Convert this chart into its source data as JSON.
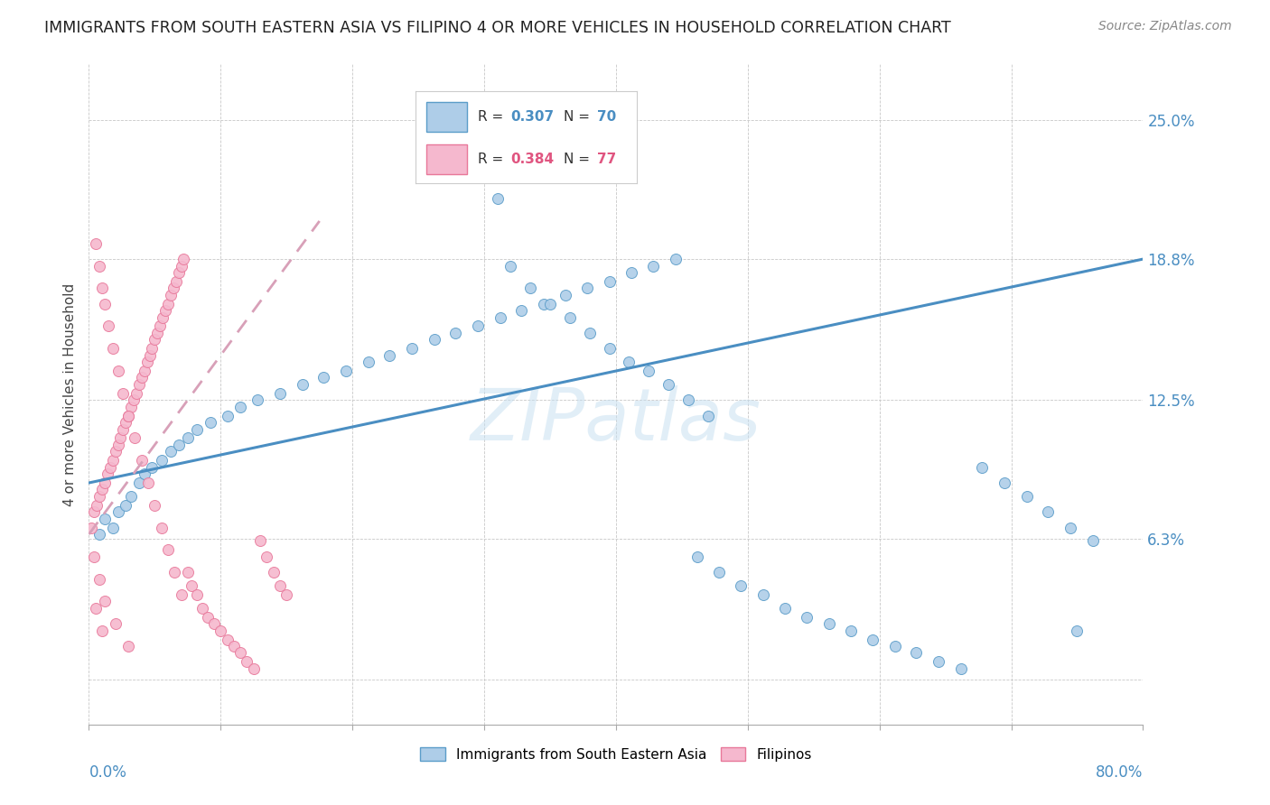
{
  "title": "IMMIGRANTS FROM SOUTH EASTERN ASIA VS FILIPINO 4 OR MORE VEHICLES IN HOUSEHOLD CORRELATION CHART",
  "source": "Source: ZipAtlas.com",
  "ylabel": "4 or more Vehicles in Household",
  "xlim": [
    0.0,
    0.8
  ],
  "ylim": [
    -0.02,
    0.275
  ],
  "ytick_vals": [
    0.0,
    0.063,
    0.125,
    0.188,
    0.25
  ],
  "ytick_labels": [
    "",
    "6.3%",
    "12.5%",
    "18.8%",
    "25.0%"
  ],
  "color_blue_fill": "#aecde8",
  "color_blue_edge": "#5b9dc9",
  "color_blue_line": "#4a8ec2",
  "color_pink_fill": "#f5b8ce",
  "color_pink_edge": "#e8789a",
  "color_pink_line": "#e8789a",
  "watermark": "ZIPatlas",
  "blue_x": [
    0.008,
    0.012,
    0.018,
    0.022,
    0.028,
    0.032,
    0.038,
    0.042,
    0.048,
    0.055,
    0.062,
    0.068,
    0.075,
    0.082,
    0.092,
    0.105,
    0.115,
    0.128,
    0.145,
    0.162,
    0.178,
    0.195,
    0.212,
    0.228,
    0.245,
    0.262,
    0.278,
    0.295,
    0.312,
    0.328,
    0.345,
    0.362,
    0.378,
    0.395,
    0.412,
    0.428,
    0.445,
    0.462,
    0.478,
    0.495,
    0.512,
    0.528,
    0.545,
    0.562,
    0.578,
    0.595,
    0.612,
    0.628,
    0.645,
    0.662,
    0.678,
    0.695,
    0.712,
    0.728,
    0.745,
    0.762,
    0.305,
    0.31,
    0.32,
    0.335,
    0.35,
    0.365,
    0.38,
    0.395,
    0.41,
    0.425,
    0.44,
    0.455,
    0.47,
    0.75
  ],
  "blue_y": [
    0.065,
    0.072,
    0.068,
    0.075,
    0.078,
    0.082,
    0.088,
    0.092,
    0.095,
    0.098,
    0.102,
    0.105,
    0.108,
    0.112,
    0.115,
    0.118,
    0.122,
    0.125,
    0.128,
    0.132,
    0.135,
    0.138,
    0.142,
    0.145,
    0.148,
    0.152,
    0.155,
    0.158,
    0.162,
    0.165,
    0.168,
    0.172,
    0.175,
    0.178,
    0.182,
    0.185,
    0.188,
    0.055,
    0.048,
    0.042,
    0.038,
    0.032,
    0.028,
    0.025,
    0.022,
    0.018,
    0.015,
    0.012,
    0.008,
    0.005,
    0.095,
    0.088,
    0.082,
    0.075,
    0.068,
    0.062,
    0.245,
    0.215,
    0.185,
    0.175,
    0.168,
    0.162,
    0.155,
    0.148,
    0.142,
    0.138,
    0.132,
    0.125,
    0.118,
    0.022
  ],
  "pink_x": [
    0.002,
    0.004,
    0.006,
    0.008,
    0.01,
    0.012,
    0.014,
    0.016,
    0.018,
    0.02,
    0.022,
    0.024,
    0.026,
    0.028,
    0.03,
    0.032,
    0.034,
    0.036,
    0.038,
    0.04,
    0.042,
    0.044,
    0.046,
    0.048,
    0.05,
    0.052,
    0.054,
    0.056,
    0.058,
    0.06,
    0.062,
    0.064,
    0.066,
    0.068,
    0.07,
    0.072,
    0.075,
    0.078,
    0.082,
    0.086,
    0.09,
    0.095,
    0.1,
    0.105,
    0.11,
    0.115,
    0.12,
    0.125,
    0.13,
    0.135,
    0.14,
    0.145,
    0.15,
    0.005,
    0.008,
    0.01,
    0.012,
    0.015,
    0.018,
    0.022,
    0.026,
    0.03,
    0.035,
    0.04,
    0.045,
    0.05,
    0.055,
    0.06,
    0.065,
    0.07,
    0.004,
    0.008,
    0.012,
    0.02,
    0.03,
    0.005,
    0.01
  ],
  "pink_y": [
    0.068,
    0.075,
    0.078,
    0.082,
    0.085,
    0.088,
    0.092,
    0.095,
    0.098,
    0.102,
    0.105,
    0.108,
    0.112,
    0.115,
    0.118,
    0.122,
    0.125,
    0.128,
    0.132,
    0.135,
    0.138,
    0.142,
    0.145,
    0.148,
    0.152,
    0.155,
    0.158,
    0.162,
    0.165,
    0.168,
    0.172,
    0.175,
    0.178,
    0.182,
    0.185,
    0.188,
    0.048,
    0.042,
    0.038,
    0.032,
    0.028,
    0.025,
    0.022,
    0.018,
    0.015,
    0.012,
    0.008,
    0.005,
    0.062,
    0.055,
    0.048,
    0.042,
    0.038,
    0.195,
    0.185,
    0.175,
    0.168,
    0.158,
    0.148,
    0.138,
    0.128,
    0.118,
    0.108,
    0.098,
    0.088,
    0.078,
    0.068,
    0.058,
    0.048,
    0.038,
    0.055,
    0.045,
    0.035,
    0.025,
    0.015,
    0.032,
    0.022
  ],
  "blue_line_x": [
    0.0,
    0.8
  ],
  "blue_line_y": [
    0.088,
    0.188
  ],
  "pink_line_x": [
    0.0,
    0.175
  ],
  "pink_line_y": [
    0.065,
    0.205
  ]
}
